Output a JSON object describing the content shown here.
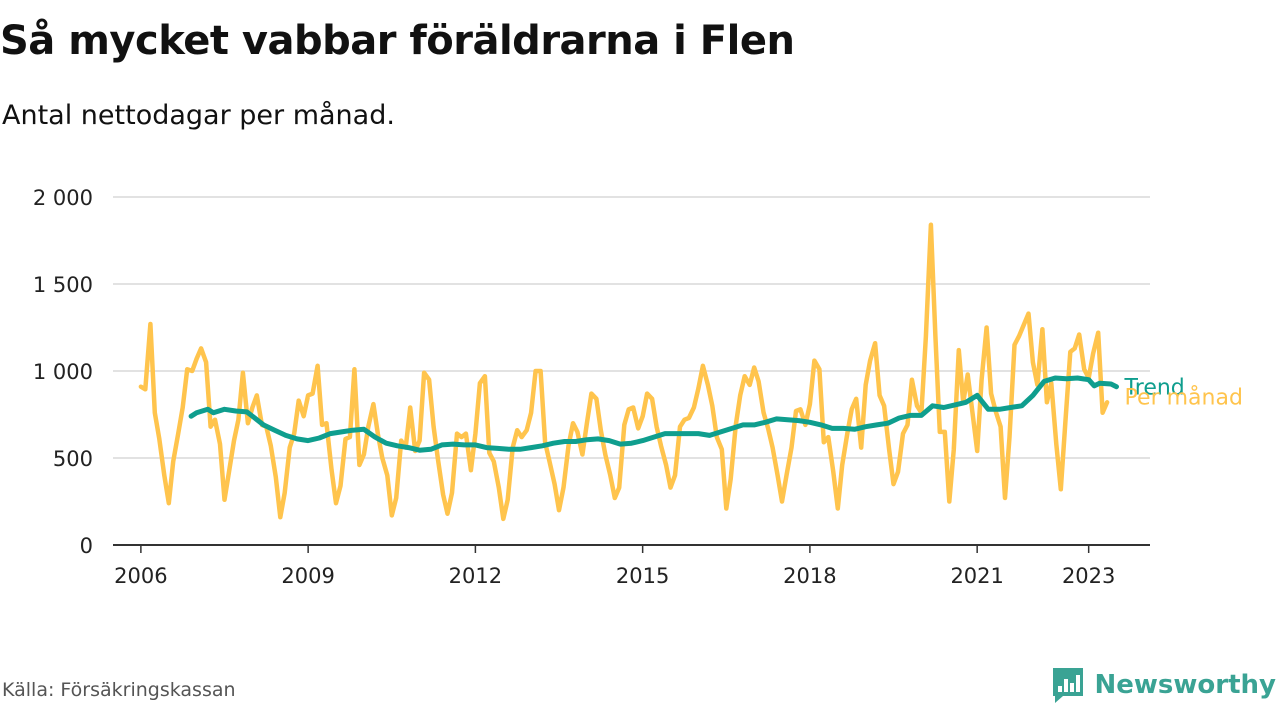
{
  "title": "Så mycket vabbar föräldrarna i Flen",
  "subtitle": "Antal nettodagar per månad.",
  "source": "Källa: Försäkringskassan",
  "brand": {
    "name": "Newsworthy",
    "icon": "newsworthy-logo-icon",
    "color": "#3aa394"
  },
  "colors": {
    "monthly": "#ffc44d",
    "trend": "#0f9e8e",
    "grid": "#d9d9d9",
    "axis": "#333333"
  },
  "chart_data": {
    "type": "line",
    "title": "Så mycket vabbar föräldrarna i Flen",
    "subtitle": "Antal nettodagar per månad.",
    "xlabel": "",
    "ylabel": "",
    "xlim": [
      2005.5,
      2024.1
    ],
    "ylim": [
      0,
      2000
    ],
    "x_ticks": [
      2006,
      2009,
      2012,
      2015,
      2018,
      2021,
      2023
    ],
    "x_tick_labels": [
      "2006",
      "2009",
      "2012",
      "2015",
      "2018",
      "2021",
      "2023"
    ],
    "y_ticks": [
      0,
      500,
      1000,
      1500,
      2000
    ],
    "y_tick_labels": [
      "0",
      "500",
      "1 000",
      "1 500",
      "2 000"
    ],
    "grid": true,
    "legend": "inline-right",
    "series": [
      {
        "name": "Per månad",
        "color": "#ffc44d",
        "points": [
          [
            2006.0,
            910
          ],
          [
            2006.08,
            895
          ],
          [
            2006.17,
            1270
          ],
          [
            2006.25,
            760
          ],
          [
            2006.33,
            610
          ],
          [
            2006.42,
            400
          ],
          [
            2006.5,
            240
          ],
          [
            2006.58,
            480
          ],
          [
            2006.67,
            640
          ],
          [
            2006.75,
            790
          ],
          [
            2006.83,
            1010
          ],
          [
            2006.92,
            1000
          ],
          [
            2007.0,
            1070
          ],
          [
            2007.08,
            1130
          ],
          [
            2007.17,
            1050
          ],
          [
            2007.25,
            680
          ],
          [
            2007.33,
            720
          ],
          [
            2007.42,
            580
          ],
          [
            2007.5,
            260
          ],
          [
            2007.58,
            420
          ],
          [
            2007.67,
            600
          ],
          [
            2007.75,
            720
          ],
          [
            2007.83,
            990
          ],
          [
            2007.92,
            700
          ],
          [
            2008.0,
            790
          ],
          [
            2008.08,
            860
          ],
          [
            2008.17,
            690
          ],
          [
            2008.25,
            680
          ],
          [
            2008.33,
            570
          ],
          [
            2008.42,
            390
          ],
          [
            2008.5,
            160
          ],
          [
            2008.58,
            300
          ],
          [
            2008.67,
            560
          ],
          [
            2008.75,
            640
          ],
          [
            2008.83,
            830
          ],
          [
            2008.92,
            740
          ],
          [
            2009.0,
            860
          ],
          [
            2009.08,
            870
          ],
          [
            2009.17,
            1030
          ],
          [
            2009.25,
            690
          ],
          [
            2009.33,
            700
          ],
          [
            2009.42,
            430
          ],
          [
            2009.5,
            240
          ],
          [
            2009.58,
            340
          ],
          [
            2009.67,
            610
          ],
          [
            2009.75,
            620
          ],
          [
            2009.83,
            1010
          ],
          [
            2009.92,
            460
          ],
          [
            2010.0,
            520
          ],
          [
            2010.08,
            680
          ],
          [
            2010.17,
            810
          ],
          [
            2010.25,
            640
          ],
          [
            2010.33,
            500
          ],
          [
            2010.42,
            400
          ],
          [
            2010.5,
            170
          ],
          [
            2010.58,
            270
          ],
          [
            2010.67,
            600
          ],
          [
            2010.75,
            560
          ],
          [
            2010.83,
            790
          ],
          [
            2010.92,
            540
          ],
          [
            2011.0,
            600
          ],
          [
            2011.08,
            990
          ],
          [
            2011.17,
            950
          ],
          [
            2011.25,
            680
          ],
          [
            2011.33,
            490
          ],
          [
            2011.42,
            290
          ],
          [
            2011.5,
            180
          ],
          [
            2011.58,
            300
          ],
          [
            2011.67,
            640
          ],
          [
            2011.75,
            620
          ],
          [
            2011.83,
            640
          ],
          [
            2011.92,
            430
          ],
          [
            2012.0,
            640
          ],
          [
            2012.08,
            930
          ],
          [
            2012.17,
            970
          ],
          [
            2012.25,
            530
          ],
          [
            2012.33,
            480
          ],
          [
            2012.42,
            330
          ],
          [
            2012.5,
            150
          ],
          [
            2012.58,
            260
          ],
          [
            2012.67,
            560
          ],
          [
            2012.75,
            660
          ],
          [
            2012.83,
            620
          ],
          [
            2012.92,
            660
          ],
          [
            2013.0,
            760
          ],
          [
            2013.08,
            1000
          ],
          [
            2013.17,
            1000
          ],
          [
            2013.25,
            590
          ],
          [
            2013.33,
            480
          ],
          [
            2013.42,
            350
          ],
          [
            2013.5,
            200
          ],
          [
            2013.58,
            330
          ],
          [
            2013.67,
            570
          ],
          [
            2013.75,
            700
          ],
          [
            2013.83,
            650
          ],
          [
            2013.92,
            520
          ],
          [
            2014.0,
            700
          ],
          [
            2014.08,
            870
          ],
          [
            2014.17,
            840
          ],
          [
            2014.25,
            660
          ],
          [
            2014.33,
            520
          ],
          [
            2014.42,
            400
          ],
          [
            2014.5,
            270
          ],
          [
            2014.58,
            330
          ],
          [
            2014.67,
            690
          ],
          [
            2014.75,
            780
          ],
          [
            2014.83,
            790
          ],
          [
            2014.92,
            670
          ],
          [
            2015.0,
            740
          ],
          [
            2015.08,
            870
          ],
          [
            2015.17,
            840
          ],
          [
            2015.25,
            680
          ],
          [
            2015.33,
            570
          ],
          [
            2015.42,
            460
          ],
          [
            2015.5,
            330
          ],
          [
            2015.58,
            400
          ],
          [
            2015.67,
            680
          ],
          [
            2015.75,
            720
          ],
          [
            2015.83,
            730
          ],
          [
            2015.92,
            790
          ],
          [
            2016.0,
            900
          ],
          [
            2016.08,
            1030
          ],
          [
            2016.17,
            920
          ],
          [
            2016.25,
            800
          ],
          [
            2016.33,
            620
          ],
          [
            2016.42,
            550
          ],
          [
            2016.5,
            210
          ],
          [
            2016.58,
            380
          ],
          [
            2016.67,
            690
          ],
          [
            2016.75,
            860
          ],
          [
            2016.83,
            970
          ],
          [
            2016.92,
            920
          ],
          [
            2017.0,
            1020
          ],
          [
            2017.08,
            940
          ],
          [
            2017.17,
            760
          ],
          [
            2017.25,
            670
          ],
          [
            2017.33,
            560
          ],
          [
            2017.42,
            400
          ],
          [
            2017.5,
            250
          ],
          [
            2017.58,
            400
          ],
          [
            2017.67,
            560
          ],
          [
            2017.75,
            770
          ],
          [
            2017.83,
            780
          ],
          [
            2017.92,
            690
          ],
          [
            2018.0,
            810
          ],
          [
            2018.08,
            1060
          ],
          [
            2018.17,
            1010
          ],
          [
            2018.25,
            590
          ],
          [
            2018.33,
            620
          ],
          [
            2018.42,
            420
          ],
          [
            2018.5,
            210
          ],
          [
            2018.58,
            460
          ],
          [
            2018.67,
            640
          ],
          [
            2018.75,
            780
          ],
          [
            2018.83,
            840
          ],
          [
            2018.92,
            560
          ],
          [
            2019.0,
            920
          ],
          [
            2019.08,
            1060
          ],
          [
            2019.17,
            1160
          ],
          [
            2019.25,
            860
          ],
          [
            2019.33,
            800
          ],
          [
            2019.42,
            550
          ],
          [
            2019.5,
            350
          ],
          [
            2019.58,
            420
          ],
          [
            2019.67,
            640
          ],
          [
            2019.75,
            690
          ],
          [
            2019.83,
            950
          ],
          [
            2019.92,
            800
          ],
          [
            2020.0,
            760
          ],
          [
            2020.08,
            1200
          ],
          [
            2020.17,
            1840
          ],
          [
            2020.25,
            1200
          ],
          [
            2020.33,
            650
          ],
          [
            2020.42,
            650
          ],
          [
            2020.5,
            250
          ],
          [
            2020.58,
            550
          ],
          [
            2020.67,
            1120
          ],
          [
            2020.75,
            820
          ],
          [
            2020.83,
            980
          ],
          [
            2020.92,
            750
          ],
          [
            2021.0,
            540
          ],
          [
            2021.08,
            950
          ],
          [
            2021.17,
            1250
          ],
          [
            2021.25,
            870
          ],
          [
            2021.33,
            770
          ],
          [
            2021.42,
            680
          ],
          [
            2021.5,
            270
          ],
          [
            2021.58,
            620
          ],
          [
            2021.67,
            1150
          ],
          [
            2021.75,
            1200
          ],
          [
            2021.83,
            1260
          ],
          [
            2021.92,
            1330
          ],
          [
            2022.0,
            1050
          ],
          [
            2022.08,
            920
          ],
          [
            2022.17,
            1240
          ],
          [
            2022.25,
            820
          ],
          [
            2022.33,
            930
          ],
          [
            2022.42,
            580
          ],
          [
            2022.5,
            320
          ],
          [
            2022.58,
            700
          ],
          [
            2022.67,
            1110
          ],
          [
            2022.75,
            1130
          ],
          [
            2022.83,
            1210
          ],
          [
            2022.92,
            1010
          ],
          [
            2023.0,
            960
          ],
          [
            2023.08,
            1100
          ],
          [
            2023.17,
            1220
          ],
          [
            2023.25,
            760
          ],
          [
            2023.33,
            820
          ]
        ]
      },
      {
        "name": "Trend",
        "color": "#0f9e8e",
        "points": [
          [
            2006.9,
            740
          ],
          [
            2007.0,
            760
          ],
          [
            2007.2,
            780
          ],
          [
            2007.3,
            760
          ],
          [
            2007.5,
            780
          ],
          [
            2007.7,
            770
          ],
          [
            2007.9,
            765
          ],
          [
            2008.0,
            740
          ],
          [
            2008.2,
            690
          ],
          [
            2008.4,
            660
          ],
          [
            2008.6,
            630
          ],
          [
            2008.8,
            610
          ],
          [
            2009.0,
            600
          ],
          [
            2009.2,
            615
          ],
          [
            2009.4,
            640
          ],
          [
            2009.6,
            650
          ],
          [
            2009.8,
            660
          ],
          [
            2010.0,
            665
          ],
          [
            2010.2,
            620
          ],
          [
            2010.4,
            585
          ],
          [
            2010.6,
            570
          ],
          [
            2010.8,
            560
          ],
          [
            2011.0,
            545
          ],
          [
            2011.2,
            550
          ],
          [
            2011.4,
            575
          ],
          [
            2011.6,
            580
          ],
          [
            2011.8,
            575
          ],
          [
            2012.0,
            575
          ],
          [
            2012.2,
            560
          ],
          [
            2012.4,
            555
          ],
          [
            2012.6,
            550
          ],
          [
            2012.8,
            550
          ],
          [
            2013.0,
            560
          ],
          [
            2013.2,
            570
          ],
          [
            2013.4,
            585
          ],
          [
            2013.6,
            595
          ],
          [
            2013.8,
            595
          ],
          [
            2014.0,
            605
          ],
          [
            2014.2,
            610
          ],
          [
            2014.4,
            600
          ],
          [
            2014.6,
            580
          ],
          [
            2014.8,
            585
          ],
          [
            2015.0,
            600
          ],
          [
            2015.2,
            620
          ],
          [
            2015.4,
            640
          ],
          [
            2015.6,
            640
          ],
          [
            2015.8,
            640
          ],
          [
            2016.0,
            640
          ],
          [
            2016.2,
            630
          ],
          [
            2016.4,
            650
          ],
          [
            2016.6,
            670
          ],
          [
            2016.8,
            690
          ],
          [
            2017.0,
            690
          ],
          [
            2017.2,
            705
          ],
          [
            2017.4,
            725
          ],
          [
            2017.6,
            720
          ],
          [
            2017.8,
            715
          ],
          [
            2018.0,
            705
          ],
          [
            2018.2,
            690
          ],
          [
            2018.4,
            670
          ],
          [
            2018.6,
            670
          ],
          [
            2018.8,
            665
          ],
          [
            2019.0,
            680
          ],
          [
            2019.2,
            690
          ],
          [
            2019.4,
            700
          ],
          [
            2019.6,
            730
          ],
          [
            2019.8,
            745
          ],
          [
            2020.0,
            745
          ],
          [
            2020.2,
            800
          ],
          [
            2020.4,
            790
          ],
          [
            2020.6,
            805
          ],
          [
            2020.8,
            820
          ],
          [
            2021.0,
            860
          ],
          [
            2021.2,
            780
          ],
          [
            2021.4,
            780
          ],
          [
            2021.6,
            790
          ],
          [
            2021.8,
            800
          ],
          [
            2022.0,
            860
          ],
          [
            2022.2,
            940
          ],
          [
            2022.4,
            960
          ],
          [
            2022.6,
            955
          ],
          [
            2022.8,
            960
          ],
          [
            2023.0,
            950
          ],
          [
            2023.1,
            915
          ],
          [
            2023.2,
            930
          ],
          [
            2023.4,
            925
          ],
          [
            2023.5,
            910
          ]
        ]
      }
    ]
  }
}
